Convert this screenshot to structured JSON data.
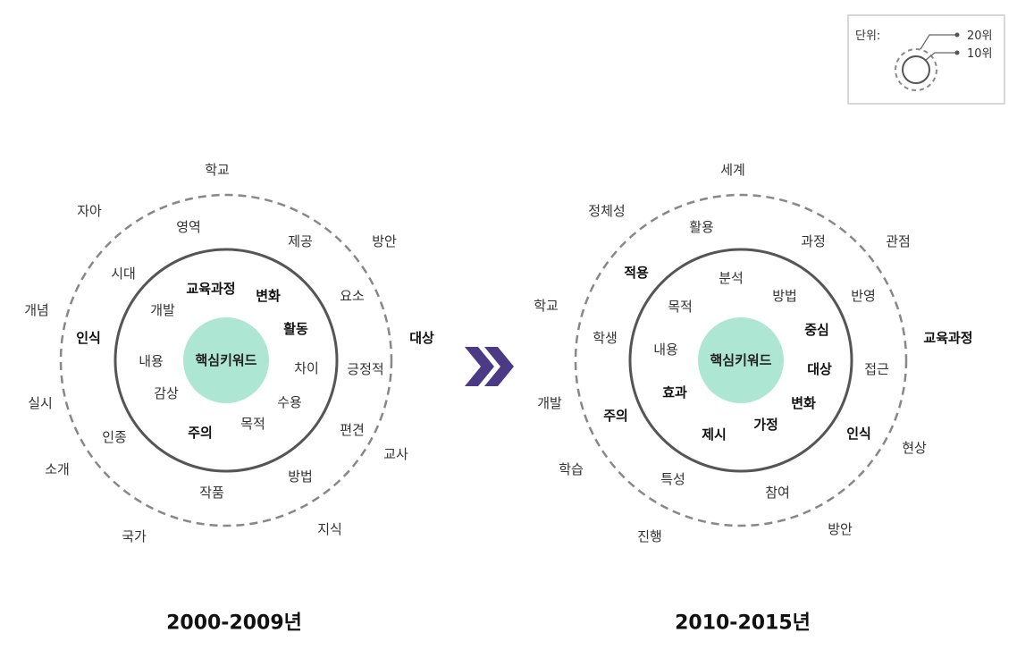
{
  "legend": {
    "title": "단위:",
    "outer_label": "20위",
    "inner_label": "10위"
  },
  "arrow_color": "#4b3a85",
  "center_color": "#aee6d4",
  "diagrams": [
    {
      "center": "핵심키워드",
      "period": "2000-2009년",
      "inner": [
        {
          "text": "교육과정",
          "bold": true
        },
        {
          "text": "변화",
          "bold": true
        },
        {
          "text": "활동",
          "bold": true
        },
        {
          "text": "개발",
          "bold": false
        },
        {
          "text": "내용",
          "bold": false
        },
        {
          "text": "차이",
          "bold": false
        },
        {
          "text": "감상",
          "bold": false
        },
        {
          "text": "수용",
          "bold": false
        },
        {
          "text": "목적",
          "bold": false
        },
        {
          "text": "주의",
          "bold": true
        }
      ],
      "middle": [
        {
          "text": "영역",
          "bold": false
        },
        {
          "text": "제공",
          "bold": false
        },
        {
          "text": "시대",
          "bold": false
        },
        {
          "text": "요소",
          "bold": false
        },
        {
          "text": "인식",
          "bold": true
        },
        {
          "text": "긍정적",
          "bold": false
        },
        {
          "text": "편견",
          "bold": false
        },
        {
          "text": "인종",
          "bold": false
        },
        {
          "text": "방법",
          "bold": false
        },
        {
          "text": "작품",
          "bold": false
        }
      ],
      "outer": [
        {
          "text": "학교",
          "bold": false
        },
        {
          "text": "자아",
          "bold": false
        },
        {
          "text": "방안",
          "bold": false
        },
        {
          "text": "개념",
          "bold": false
        },
        {
          "text": "대상",
          "bold": true
        },
        {
          "text": "실시",
          "bold": false
        },
        {
          "text": "교사",
          "bold": false
        },
        {
          "text": "소개",
          "bold": false
        },
        {
          "text": "지식",
          "bold": false
        },
        {
          "text": "국가",
          "bold": false
        }
      ]
    },
    {
      "center": "핵심키워드",
      "period": "2010-2015년",
      "inner": [
        {
          "text": "분석",
          "bold": false
        },
        {
          "text": "방법",
          "bold": false
        },
        {
          "text": "목적",
          "bold": false
        },
        {
          "text": "중심",
          "bold": true
        },
        {
          "text": "내용",
          "bold": false
        },
        {
          "text": "대상",
          "bold": true
        },
        {
          "text": "효과",
          "bold": true
        },
        {
          "text": "변화",
          "bold": true
        },
        {
          "text": "가정",
          "bold": true
        },
        {
          "text": "제시",
          "bold": true
        }
      ],
      "middle": [
        {
          "text": "활용",
          "bold": false
        },
        {
          "text": "과정",
          "bold": false
        },
        {
          "text": "적용",
          "bold": true
        },
        {
          "text": "반영",
          "bold": false
        },
        {
          "text": "학생",
          "bold": false
        },
        {
          "text": "접근",
          "bold": false
        },
        {
          "text": "주의",
          "bold": true
        },
        {
          "text": "인식",
          "bold": true
        },
        {
          "text": "특성",
          "bold": false
        },
        {
          "text": "참여",
          "bold": false
        }
      ],
      "outer": [
        {
          "text": "세계",
          "bold": false
        },
        {
          "text": "정체성",
          "bold": false
        },
        {
          "text": "관점",
          "bold": false
        },
        {
          "text": "학교",
          "bold": false
        },
        {
          "text": "교육과정",
          "bold": true
        },
        {
          "text": "개발",
          "bold": false
        },
        {
          "text": "현상",
          "bold": false
        },
        {
          "text": "학습",
          "bold": false
        },
        {
          "text": "진행",
          "bold": false
        },
        {
          "text": "방안",
          "bold": false
        }
      ]
    }
  ]
}
